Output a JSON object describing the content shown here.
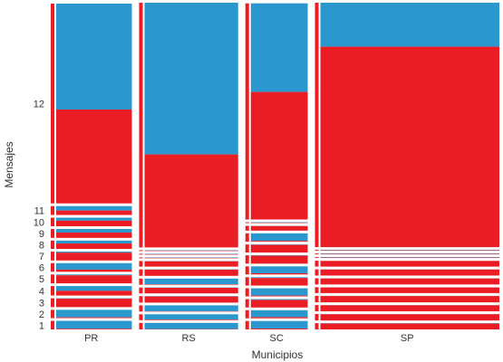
{
  "chart_data": {
    "type": "mosaic",
    "xlabel": "Municipios",
    "ylabel": "Mensajes",
    "colors": {
      "a": "#ea1d24",
      "b": "#2a98ce"
    },
    "y_levels": [
      "1",
      "2",
      "3",
      "4",
      "5",
      "6",
      "7",
      "8",
      "9",
      "10",
      "11",
      "12"
    ],
    "columns": [
      {
        "name": "PR",
        "width": 0.19,
        "segments": [
          {
            "level": "1",
            "share": 0.029,
            "b_frac": 0.92
          },
          {
            "level": "2",
            "share": 0.028,
            "b_frac": 0.9
          },
          {
            "level": "3",
            "share": 0.03,
            "b_frac": 0.05
          },
          {
            "level": "4",
            "share": 0.032,
            "b_frac": 0.5
          },
          {
            "level": "5",
            "share": 0.03,
            "b_frac": 0.1
          },
          {
            "level": "6",
            "share": 0.029,
            "b_frac": 0.75
          },
          {
            "level": "7",
            "share": 0.03,
            "b_frac": 0.12
          },
          {
            "level": "8",
            "share": 0.028,
            "b_frac": 0.35
          },
          {
            "level": "9",
            "share": 0.03,
            "b_frac": 0.4
          },
          {
            "level": "10",
            "share": 0.029,
            "b_frac": 0.35
          },
          {
            "level": "11",
            "share": 0.03,
            "b_frac": 0.5
          },
          {
            "level": "12",
            "share": 0.675,
            "b_frac": 0.53
          }
        ]
      },
      {
        "name": "RS",
        "width": 0.232,
        "segments": [
          {
            "level": "1",
            "share": 0.022,
            "b_frac": 0.95
          },
          {
            "level": "2",
            "share": 0.02,
            "b_frac": 0.9
          },
          {
            "level": "3",
            "share": 0.021,
            "b_frac": 0.95
          },
          {
            "level": "4",
            "share": 0.022,
            "b_frac": 0.05
          },
          {
            "level": "5",
            "share": 0.02,
            "b_frac": 0.05
          },
          {
            "level": "6",
            "share": 0.021,
            "b_frac": 0.92
          },
          {
            "level": "7",
            "share": 0.022,
            "b_frac": 0.05
          },
          {
            "level": "8",
            "share": 0.019,
            "b_frac": 0.05
          },
          {
            "level": "9",
            "share": 0.002,
            "b_frac": 0.5
          },
          {
            "level": "10",
            "share": 0.002,
            "b_frac": 0.5
          },
          {
            "level": "11",
            "share": 0.002,
            "b_frac": 0.5
          },
          {
            "level": "12",
            "share": 0.827,
            "b_frac": 0.62
          }
        ]
      },
      {
        "name": "SC",
        "width": 0.146,
        "segments": [
          {
            "level": "1",
            "share": 0.028,
            "b_frac": 0.9
          },
          {
            "level": "2",
            "share": 0.027,
            "b_frac": 0.85
          },
          {
            "level": "3",
            "share": 0.028,
            "b_frac": 0.1
          },
          {
            "level": "4",
            "share": 0.027,
            "b_frac": 0.9
          },
          {
            "level": "5",
            "share": 0.028,
            "b_frac": 0.1
          },
          {
            "level": "6",
            "share": 0.027,
            "b_frac": 0.85
          },
          {
            "level": "7",
            "share": 0.028,
            "b_frac": 0.05
          },
          {
            "level": "8",
            "share": 0.027,
            "b_frac": 0.05
          },
          {
            "level": "9",
            "share": 0.028,
            "b_frac": 0.9
          },
          {
            "level": "10",
            "share": 0.016,
            "b_frac": 0.05
          },
          {
            "level": "11",
            "share": 0.002,
            "b_frac": 0.5
          },
          {
            "level": "12",
            "share": 0.721,
            "b_frac": 0.41
          }
        ]
      },
      {
        "name": "SP",
        "width": 0.432,
        "segments": [
          {
            "level": "1",
            "share": 0.021,
            "b_frac": 0.05
          },
          {
            "level": "2",
            "share": 0.022,
            "b_frac": 0.03
          },
          {
            "level": "3",
            "share": 0.021,
            "b_frac": 0.03
          },
          {
            "level": "4",
            "share": 0.022,
            "b_frac": 0.03
          },
          {
            "level": "5",
            "share": 0.02,
            "b_frac": 0.03
          },
          {
            "level": "6",
            "share": 0.021,
            "b_frac": 0.03
          },
          {
            "level": "7",
            "share": 0.021,
            "b_frac": 0.03
          },
          {
            "level": "8",
            "share": 0.02,
            "b_frac": 0.03
          },
          {
            "level": "9",
            "share": 0.002,
            "b_frac": 0.5
          },
          {
            "level": "10",
            "share": 0.002,
            "b_frac": 0.5
          },
          {
            "level": "11",
            "share": 0.002,
            "b_frac": 0.5
          },
          {
            "level": "12",
            "share": 0.826,
            "b_frac": 0.18
          }
        ]
      }
    ]
  }
}
